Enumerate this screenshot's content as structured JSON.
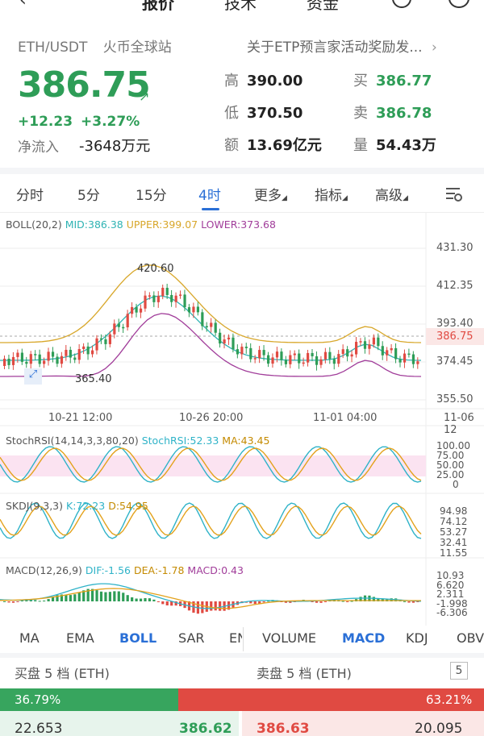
{
  "top_tabs": [
    "报价",
    "技术",
    "资金"
  ],
  "header": {
    "pair": "ETH/USDT",
    "exchange": "火币全球站",
    "notice": "关于ETP预言家活动奖励发...",
    "price": "386.75",
    "change": "+12.23",
    "change_pct": "+3.27%",
    "netflow_label": "净流入",
    "netflow_value": "-3648万元",
    "stats": [
      {
        "label": "高",
        "value": "390.00"
      },
      {
        "label": "低",
        "value": "370.50"
      },
      {
        "label": "额",
        "value": "13.69亿元"
      },
      {
        "label": "买",
        "value": "386.77"
      },
      {
        "label": "卖",
        "value": "386.78"
      },
      {
        "label": "量",
        "value": "54.43万"
      }
    ]
  },
  "timeframe_tabs": [
    "分时",
    "5分",
    "15分",
    "4时",
    "更多",
    "指标",
    "高级"
  ],
  "active_timeframe": "4时",
  "main_chart": {
    "boll_label": "BOLL(20,2)",
    "mid": "MID:386.38",
    "upper": "UPPER:399.07",
    "lower": "LOWER:373.68",
    "y_ticks": [
      "431.30",
      "412.35",
      "393.40",
      "374.45",
      "355.50"
    ],
    "current_price_tag": "386.75",
    "high_marker": "420.60",
    "low_marker": "365.40",
    "x_ticks": [
      "10-21 12:00",
      "10-26 20:00",
      "11-01 04:00",
      "11-06 12"
    ]
  },
  "stochrsi": {
    "label": "StochRSI(14,14,3,3,80,20)",
    "value": "StochRSI:52.33",
    "ma": "MA:43.45",
    "ticks": [
      "100.00",
      "75.00",
      "50.00",
      "25.00",
      "0"
    ]
  },
  "skdj": {
    "label": "SKDJ(9,3,3)",
    "k": "K:72.23",
    "d": "D:54.95",
    "ticks": [
      "94.98",
      "74.12",
      "53.27",
      "32.41",
      "11.55"
    ]
  },
  "macd": {
    "label": "MACD(12,26,9)",
    "dif": "DIF:-1.56",
    "dea": "DEA:-1.78",
    "macd": "MACD:0.43",
    "ticks": [
      "10.93",
      "6.620",
      "2.311",
      "-1.998",
      "-6.306"
    ]
  },
  "indicator_tabs_left": [
    "MA",
    "EMA",
    "BOLL",
    "SAR",
    "EN"
  ],
  "indicator_tabs_right": [
    "VOLUME",
    "MACD",
    "KDJ",
    "OBV"
  ],
  "active_main_indicator": "BOLL",
  "active_sub_indicator": "MACD",
  "orderbook": {
    "buy_title": "买盘 5 档 (ETH)",
    "sell_title": "卖盘 5 档 (ETH)",
    "depth": "5",
    "buy_pct": "36.79%",
    "sell_pct": "63.21%",
    "row1_buy_qty": "22.653",
    "row1_buy_price": "386.62",
    "row1_sell_price": "386.63",
    "row1_sell_qty": "20.095"
  },
  "colors": {
    "up": "#2e9d57",
    "down": "#e04a42",
    "accent": "#2a6fd6"
  }
}
